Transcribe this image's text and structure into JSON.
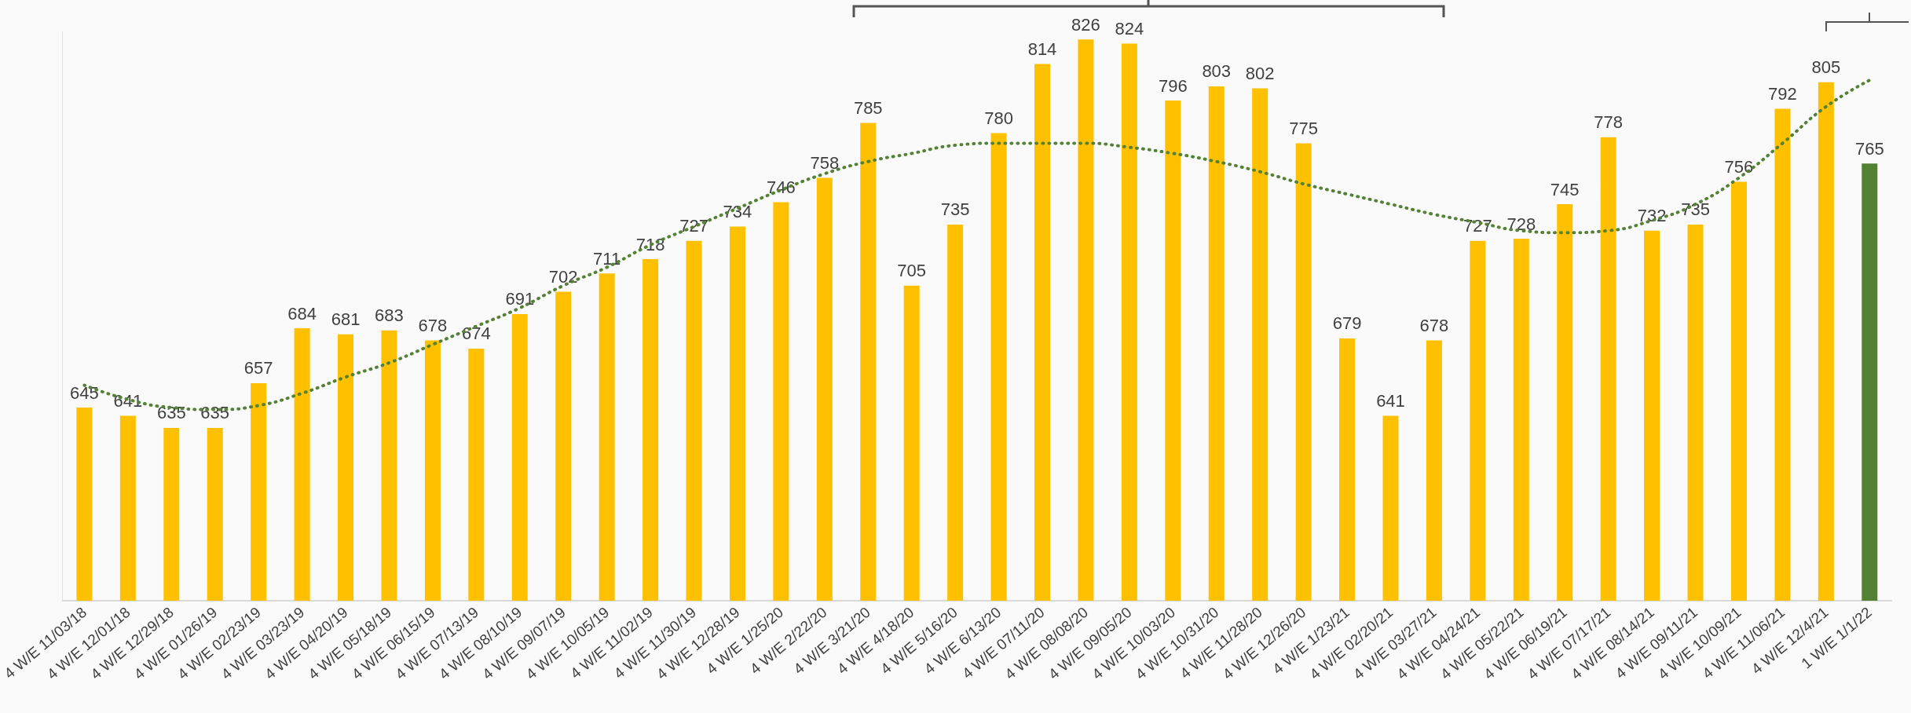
{
  "chart_data": {
    "type": "bar",
    "categories": [
      "4 W/E 11/03/18",
      "4 W/E 12/01/18",
      "4 W/E 12/29/18",
      "4 W/E 01/26/19",
      "4 W/E 02/23/19",
      "4 W/E 03/23/19",
      "4 W/E 04/20/19",
      "4 W/E 05/18/19",
      "4 W/E 06/15/19",
      "4 W/E 07/13/19",
      "4 W/E 08/10/19",
      "4 W/E 09/07/19",
      "4 W/E 10/05/19",
      "4 W/E 11/02/19",
      "4 W/E 11/30/19",
      "4 W/E 12/28/19",
      "4 W/E 1/25/20",
      "4 W/E 2/22/20",
      "4 W/E 3/21/20",
      "4 W/E 4/18/20",
      "4 W/E 5/16/20",
      "4 W/E 6/13/20",
      "4 W/E 07/11/20",
      "4 W/E 08/08/20",
      "4 W/E 09/05/20",
      "4 W/E 10/03/20",
      "4 W/E 10/31/20",
      "4 W/E 11/28/20",
      "4 W/E 12/26/20",
      "4 W/E 1/23/21",
      "4 W/E 02/20/21",
      "4 W/E 03/27/21",
      "4 W/E 04/24/21",
      "4 W/E 05/22/21",
      "4 W/E 06/19/21",
      "4 W/E 07/17/21",
      "4 W/E 08/14/21",
      "4 W/E 09/11/21",
      "4 W/E 10/09/21",
      "4 W/E 11/06/21",
      "4 W/E 12/4/21",
      "1 W/E 1/1/22"
    ],
    "series": [
      {
        "values": [
          645,
          641,
          635,
          635,
          657,
          684,
          681,
          683,
          678,
          674,
          691,
          702,
          711,
          718,
          727,
          734,
          746,
          758,
          785,
          705,
          735,
          780,
          814,
          826,
          824,
          796,
          803,
          802,
          775,
          679,
          641,
          678,
          727,
          728,
          745,
          778,
          732,
          735,
          756,
          792,
          805,
          765
        ],
        "value_labels": [
          "645",
          "641",
          "635",
          "635",
          "657",
          "684",
          "681",
          "683",
          "678",
          "674",
          "691",
          "702",
          "711",
          "718",
          "727",
          "734",
          "746",
          "758",
          "785",
          "705",
          "735",
          "780",
          "814",
          "826",
          "824",
          "796",
          "803",
          "802",
          "775",
          "679",
          "641",
          "678",
          "727",
          "728",
          "745",
          "778",
          "732",
          "735",
          "756",
          "792",
          "805",
          "765"
        ],
        "colors": [
          "#ffc000",
          "#ffc000",
          "#ffc000",
          "#ffc000",
          "#ffc000",
          "#ffc000",
          "#ffc000",
          "#ffc000",
          "#ffc000",
          "#ffc000",
          "#ffc000",
          "#ffc000",
          "#ffc000",
          "#ffc000",
          "#ffc000",
          "#ffc000",
          "#ffc000",
          "#ffc000",
          "#ffc000",
          "#ffc000",
          "#ffc000",
          "#ffc000",
          "#ffc000",
          "#ffc000",
          "#ffc000",
          "#ffc000",
          "#ffc000",
          "#ffc000",
          "#ffc000",
          "#ffc000",
          "#ffc000",
          "#ffc000",
          "#ffc000",
          "#ffc000",
          "#ffc000",
          "#ffc000",
          "#ffc000",
          "#ffc000",
          "#ffc000",
          "#ffc000",
          "#ffc000",
          "#548235"
        ]
      },
      {
        "type": "line",
        "color": "#548235",
        "line_style": "dotted",
        "marker": "none",
        "values": [
          656,
          649,
          645,
          644,
          646,
          652,
          660,
          667,
          676,
          685,
          694,
          705,
          714,
          725,
          734,
          743,
          752,
          760,
          766,
          770,
          774,
          775,
          775,
          775,
          773,
          770,
          766,
          761,
          755,
          750,
          745,
          740,
          736,
          732,
          731,
          732,
          737,
          745,
          758,
          775,
          793,
          806
        ]
      }
    ],
    "ylim": [
      550,
      830
    ],
    "tick_labels": "x"
  }
}
